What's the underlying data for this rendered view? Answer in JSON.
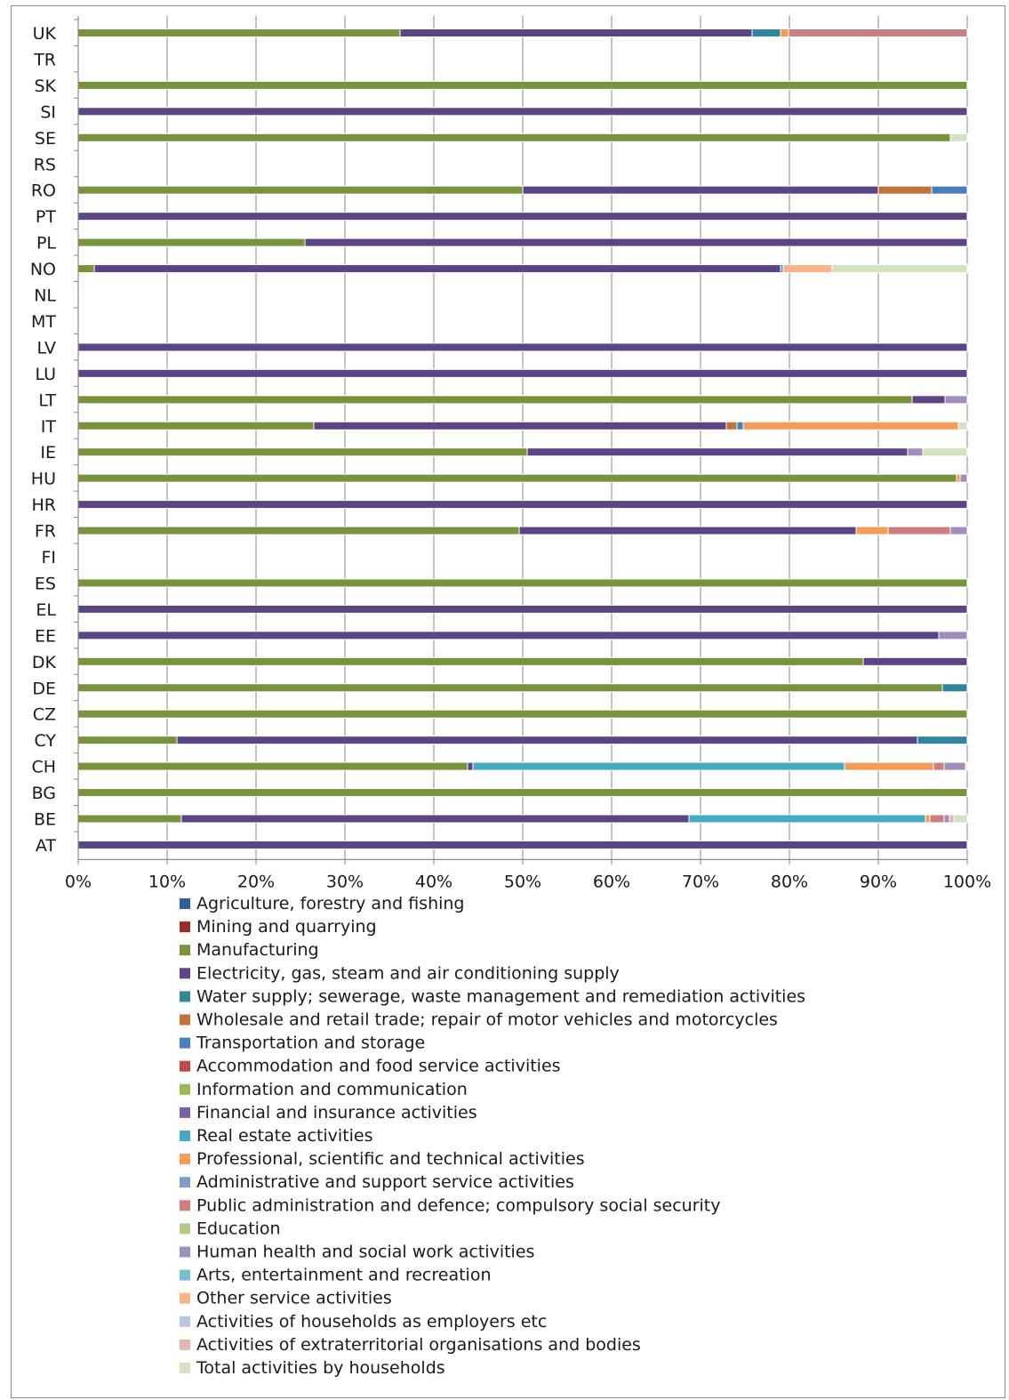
{
  "chart_data": {
    "type": "bar",
    "orientation": "horizontal",
    "stacked": "percent",
    "title": "",
    "xlabel": "",
    "ylabel": "",
    "xlim": [
      0,
      100
    ],
    "x_tick_labels": [
      "0%",
      "10%",
      "20%",
      "30%",
      "40%",
      "50%",
      "60%",
      "70%",
      "80%",
      "90%",
      "100%"
    ],
    "grid": true,
    "legend_position": "bottom",
    "categories": [
      "UK",
      "TR",
      "SK",
      "SI",
      "SE",
      "RS",
      "RO",
      "PT",
      "PL",
      "NO",
      "NL",
      "MT",
      "LV",
      "LU",
      "LT",
      "IT",
      "IE",
      "HU",
      "HR",
      "FR",
      "FI",
      "ES",
      "EL",
      "EE",
      "DK",
      "DE",
      "CZ",
      "CY",
      "CH",
      "BG",
      "BE",
      "AT"
    ],
    "series": [
      {
        "name": "Agriculture, forestry and fishing",
        "color": "#2f5f97",
        "values": [
          0,
          0,
          0,
          0,
          0,
          0,
          0,
          0,
          0,
          0,
          0,
          0,
          0,
          0,
          0,
          0,
          0,
          0,
          0,
          0,
          0,
          0,
          0,
          0,
          0,
          0,
          0,
          0,
          0,
          0,
          0,
          0
        ]
      },
      {
        "name": "Mining and quarrying",
        "color": "#9b2b27",
        "values": [
          0,
          0,
          0,
          0,
          0,
          0,
          0,
          0,
          0,
          0,
          0,
          0,
          0,
          0,
          0,
          0,
          0,
          0,
          0,
          0,
          0,
          0,
          0,
          0,
          0,
          0,
          0,
          0,
          0,
          0,
          0,
          0
        ]
      },
      {
        "name": "Manufacturing",
        "color": "#77933c",
        "values": [
          36.2,
          0,
          100,
          0,
          98.1,
          0,
          50,
          0,
          25.5,
          1.8,
          0,
          0,
          0,
          0,
          93.8,
          26.5,
          50.5,
          98.8,
          0,
          49.6,
          0,
          100,
          0,
          0,
          88.3,
          97.2,
          100,
          11.1,
          43.8,
          100,
          11.6,
          0
        ]
      },
      {
        "name": "Electricity, gas, steam and air conditioning supply",
        "color": "#5c4586",
        "values": [
          39.6,
          0,
          0,
          100,
          0,
          0,
          40,
          100,
          74.5,
          77.2,
          0,
          0,
          100,
          100,
          3.7,
          46.4,
          42.8,
          0,
          100,
          37.9,
          0,
          0,
          100,
          96.8,
          11.7,
          0,
          0,
          83.3,
          0.6,
          0,
          57.1,
          100
        ]
      },
      {
        "name": "Water supply; sewerage, waste management and remediation activities",
        "color": "#31859c",
        "values": [
          3.2,
          0,
          0,
          0,
          0,
          0,
          0,
          0,
          0,
          0,
          0,
          0,
          0,
          0,
          0,
          0,
          0,
          0,
          0,
          0,
          0,
          0,
          0,
          0,
          0,
          2.8,
          0,
          5.6,
          0,
          0,
          0,
          0
        ]
      },
      {
        "name": "Wholesale and retail trade; repair of motor vehicles and motorcycles",
        "color": "#c0733a",
        "values": [
          0,
          0,
          0,
          0,
          0,
          0,
          6,
          0,
          0,
          0,
          0,
          0,
          0,
          0,
          0,
          1.2,
          0,
          0,
          0,
          0,
          0,
          0,
          0,
          0,
          0,
          0,
          0,
          0,
          0,
          0,
          0,
          0
        ]
      },
      {
        "name": "Transportation and storage",
        "color": "#4a7ebb",
        "values": [
          0,
          0,
          0,
          0,
          0,
          0,
          4,
          0,
          0,
          0,
          0,
          0,
          0,
          0,
          0,
          0.7,
          0,
          0,
          0,
          0,
          0,
          0,
          0,
          0,
          0,
          0,
          0,
          0,
          0,
          0,
          0,
          0
        ]
      },
      {
        "name": "Accommodation and food service activities",
        "color": "#be4b48",
        "values": [
          0,
          0,
          0,
          0,
          0,
          0,
          0,
          0,
          0,
          0,
          0,
          0,
          0,
          0,
          0,
          0,
          0,
          0,
          0,
          0,
          0,
          0,
          0,
          0,
          0,
          0,
          0,
          0,
          0,
          0,
          0,
          0
        ]
      },
      {
        "name": "Information and communication",
        "color": "#98b954",
        "values": [
          0,
          0,
          0,
          0,
          0,
          0,
          0,
          0,
          0,
          0,
          0,
          0,
          0,
          0,
          0,
          0,
          0,
          0,
          0,
          0,
          0,
          0,
          0,
          0,
          0,
          0,
          0,
          0,
          0,
          0,
          0,
          0
        ]
      },
      {
        "name": "Financial and insurance activities",
        "color": "#7d60a0",
        "values": [
          0,
          0,
          0,
          0,
          0,
          0,
          0,
          0,
          0,
          0,
          0,
          0,
          0,
          0,
          0,
          0,
          0,
          0,
          0,
          0,
          0,
          0,
          0,
          0,
          0,
          0,
          0,
          0,
          0,
          0,
          0,
          0
        ]
      },
      {
        "name": "Real estate activities",
        "color": "#46aac5",
        "values": [
          0,
          0,
          0,
          0,
          0,
          0,
          0,
          0,
          0,
          0.3,
          0,
          0,
          0,
          0,
          0,
          0,
          0,
          0,
          0,
          0,
          0,
          0,
          0,
          0,
          0,
          0,
          0,
          0,
          41.8,
          0,
          26.6,
          0
        ]
      },
      {
        "name": "Professional, scientific and technical activities",
        "color": "#f59d56",
        "values": [
          0.9,
          0,
          0,
          0,
          0,
          0,
          0,
          0,
          0,
          0,
          0,
          0,
          0,
          0,
          0,
          24.2,
          0,
          0.4,
          0,
          3.6,
          0,
          0,
          0,
          0,
          0,
          0,
          0,
          0,
          10,
          0,
          0.5,
          0
        ]
      },
      {
        "name": "Administrative and support service activities",
        "color": "#7f9dca",
        "values": [
          0,
          0,
          0,
          0,
          0,
          0,
          0,
          0,
          0,
          0,
          0,
          0,
          0,
          0,
          0,
          0,
          0,
          0,
          0,
          0,
          0,
          0,
          0,
          0,
          0,
          0,
          0,
          0,
          0,
          0,
          0,
          0
        ]
      },
      {
        "name": "Public administration and defence; compulsory social security",
        "color": "#cd7f7d",
        "values": [
          20.1,
          0,
          0,
          0,
          0,
          0,
          0,
          0,
          0,
          0,
          0,
          0,
          0,
          0,
          0,
          0,
          0,
          0,
          0,
          7,
          0,
          0,
          0,
          0,
          0,
          0,
          0,
          0,
          1.2,
          0,
          1.6,
          0
        ]
      },
      {
        "name": "Education",
        "color": "#b3cb84",
        "values": [
          0,
          0,
          0,
          0,
          0,
          0,
          0,
          0,
          0,
          0,
          0,
          0,
          0,
          0,
          0,
          0,
          0,
          0,
          0,
          0,
          0,
          0,
          0,
          0,
          0,
          0,
          0,
          0,
          0,
          0,
          0,
          0
        ]
      },
      {
        "name": "Human health and social work activities",
        "color": "#a18ebd",
        "values": [
          0,
          0,
          0,
          0,
          0,
          0,
          0,
          0,
          0,
          0,
          0,
          0,
          0,
          0,
          2.5,
          0,
          1.7,
          0.8,
          0,
          1.9,
          0,
          0,
          0,
          3.2,
          0,
          0,
          0,
          0,
          2.4,
          0,
          0.6,
          0
        ]
      },
      {
        "name": "Arts, entertainment and recreation",
        "color": "#78bfd1",
        "values": [
          0,
          0,
          0,
          0,
          0,
          0,
          0,
          0,
          0,
          0,
          0,
          0,
          0,
          0,
          0,
          0,
          0,
          0,
          0,
          0,
          0,
          0,
          0,
          0,
          0,
          0,
          0,
          0,
          0,
          0,
          0,
          0
        ]
      },
      {
        "name": "Other service activities",
        "color": "#f8b58a",
        "values": [
          0,
          0,
          0,
          0,
          0,
          0,
          0,
          0,
          0,
          5.5,
          0,
          0,
          0,
          0,
          0,
          0,
          0,
          0,
          0,
          0,
          0,
          0,
          0,
          0,
          0,
          0,
          0,
          0,
          0,
          0,
          0,
          0
        ]
      },
      {
        "name": "Activities of households as employers etc",
        "color": "#b7c7e3",
        "values": [
          0,
          0,
          0,
          0,
          0,
          0,
          0,
          0,
          0,
          0,
          0,
          0,
          0,
          0,
          0,
          0,
          0,
          0,
          0,
          0,
          0,
          0,
          0,
          0,
          0,
          0,
          0,
          0,
          0,
          0,
          0,
          0
        ]
      },
      {
        "name": "Activities of extraterritorial organisations and bodies",
        "color": "#e0b7b6",
        "values": [
          0,
          0,
          0,
          0,
          0,
          0,
          0,
          0,
          0,
          0,
          0,
          0,
          0,
          0,
          0,
          0,
          0,
          0,
          0,
          0,
          0,
          0,
          0,
          0,
          0,
          0,
          0,
          0,
          0,
          0,
          0.5,
          0
        ]
      },
      {
        "name": "Total activities by households",
        "color": "#d3e2bf",
        "values": [
          0,
          0,
          0,
          0,
          1.9,
          0,
          0,
          0,
          0,
          15.2,
          0,
          0,
          0,
          0,
          0,
          1,
          5,
          0,
          0,
          0,
          0,
          0,
          0,
          0,
          0,
          0,
          0,
          0,
          0.2,
          0,
          1.5,
          0
        ]
      }
    ]
  }
}
